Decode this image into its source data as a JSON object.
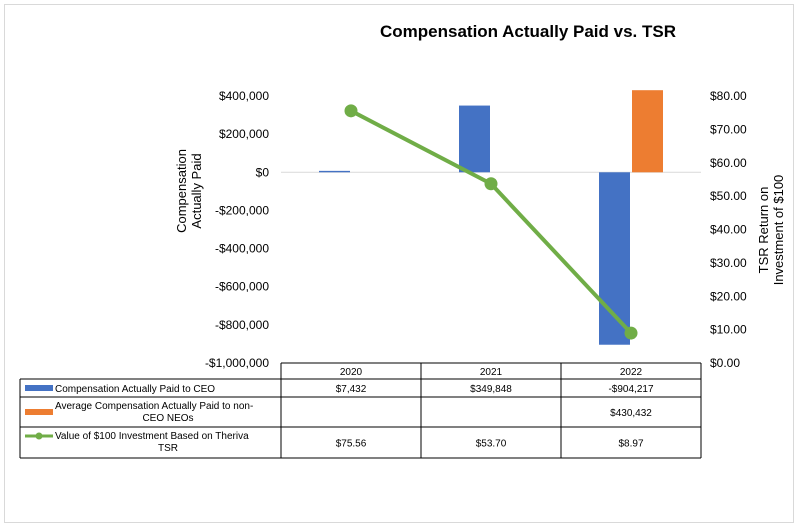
{
  "chart_data": {
    "type": "bar+line",
    "title": "Compensation Actually Paid vs. TSR",
    "categories": [
      "2020",
      "2021",
      "2022"
    ],
    "ylabel_left": [
      "Compensation",
      "Actually Paid"
    ],
    "ylabel_right": [
      "TSR Return on",
      "Investment of $100"
    ],
    "ylim_left": [
      -1000000,
      400000
    ],
    "ylim_right": [
      0,
      80
    ],
    "left_ticks": [
      {
        "value": 400000,
        "label": "$400,000"
      },
      {
        "value": 200000,
        "label": "$200,000"
      },
      {
        "value": 0,
        "label": "$0"
      },
      {
        "value": -200000,
        "label": "-$200,000"
      },
      {
        "value": -400000,
        "label": "-$400,000"
      },
      {
        "value": -600000,
        "label": "-$600,000"
      },
      {
        "value": -800000,
        "label": "-$800,000"
      },
      {
        "value": -1000000,
        "label": "-$1,000,000"
      }
    ],
    "right_ticks": [
      {
        "value": 80,
        "label": "$80.00"
      },
      {
        "value": 70,
        "label": "$70.00"
      },
      {
        "value": 60,
        "label": "$60.00"
      },
      {
        "value": 50,
        "label": "$50.00"
      },
      {
        "value": 40,
        "label": "$40.00"
      },
      {
        "value": 30,
        "label": "$30.00"
      },
      {
        "value": 20,
        "label": "$20.00"
      },
      {
        "value": 10,
        "label": "$10.00"
      },
      {
        "value": 0,
        "label": "$0.00"
      }
    ],
    "series": [
      {
        "name": "Compensation Actually Paid to CEO",
        "kind": "bar",
        "axis": "left",
        "color": "#4472c4",
        "values": [
          7432,
          349848,
          -904217
        ],
        "labels": [
          "$7,432",
          "$349,848",
          "-$904,217"
        ]
      },
      {
        "name_lines": [
          "Average Compensation Actually Paid to non-",
          "CEO NEOs"
        ],
        "kind": "bar",
        "axis": "left",
        "color": "#ed7d31",
        "values": [
          null,
          null,
          430432
        ],
        "labels": [
          "",
          "",
          "$430,432"
        ]
      },
      {
        "name_lines": [
          "Value of $100 Investment Based on Theriva",
          "TSR"
        ],
        "kind": "line",
        "axis": "right",
        "color": "#70ad47",
        "values": [
          75.56,
          53.7,
          8.97
        ],
        "labels": [
          "$75.56",
          "$53.70",
          "$8.97"
        ]
      }
    ]
  }
}
